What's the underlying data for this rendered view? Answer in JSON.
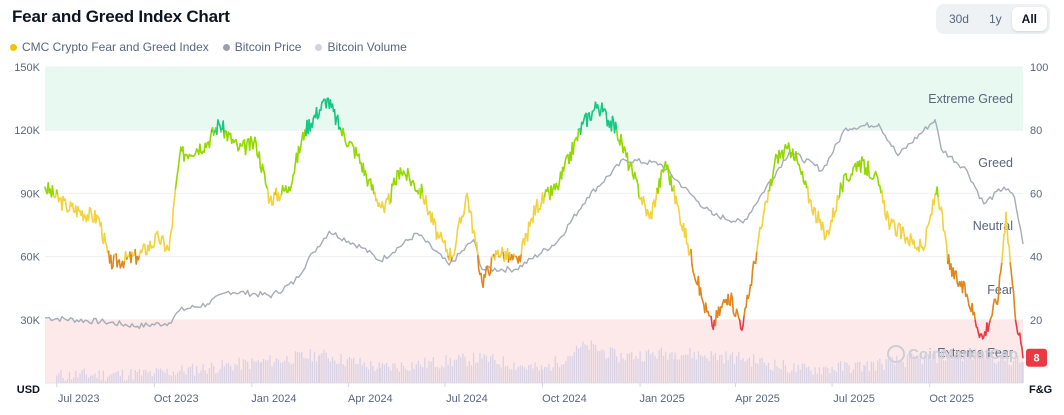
{
  "header": {
    "title": "Fear and Greed Index Chart"
  },
  "ranges": [
    {
      "label": "30d"
    },
    {
      "label": "1y"
    },
    {
      "label": "All"
    }
  ],
  "active_range": "All",
  "legend": [
    {
      "label": "CMC Crypto Fear and Greed Index",
      "color": "#f0c400"
    },
    {
      "label": "Bitcoin Price",
      "color": "#9aa1ad"
    },
    {
      "label": "Bitcoin Volume",
      "color": "#d6d0e2"
    }
  ],
  "badge": {
    "value": "8",
    "color": "#ea3943"
  },
  "watermark": "CoinMarketCap",
  "colors": {
    "extreme_fear": "#ea3943",
    "fear": "#e0861b",
    "neutral": "#f3d23c",
    "greed": "#93d900",
    "extreme_greed": "#16c784",
    "greed_zone_fill": "#e7f9f0",
    "fear_zone_fill": "#fde9ea",
    "price_line": "#a6acb6",
    "volume_bars": "#d9d2e4"
  },
  "chart_data": {
    "type": "line",
    "title": "Fear and Greed Index Chart",
    "x_tick_labels": [
      "Jul 2023",
      "Oct 2023",
      "Jan 2024",
      "Apr 2024",
      "Jul 2024",
      "Oct 2024",
      "Jan 2025",
      "Apr 2025",
      "Jul 2025",
      "Oct 2025"
    ],
    "x_tick_dates": [
      "2023-07-01",
      "2023-10-01",
      "2024-01-01",
      "2024-04-01",
      "2024-07-01",
      "2024-10-01",
      "2025-01-01",
      "2025-04-01",
      "2025-07-01",
      "2025-10-01"
    ],
    "x_range": [
      "2023-06-20",
      "2025-12-28"
    ],
    "left_axis": {
      "unit": "USD",
      "ticks": [
        "30K",
        "60K",
        "90K",
        "120K",
        "150K"
      ],
      "tick_values": [
        30000,
        60000,
        90000,
        120000,
        150000
      ],
      "range": [
        0,
        150000
      ]
    },
    "right_axis": {
      "unit": "F&G",
      "ticks": [
        "20",
        "40",
        "60",
        "80",
        "100"
      ],
      "tick_values": [
        20,
        40,
        60,
        80,
        100
      ],
      "range": [
        0,
        100
      ]
    },
    "zones": [
      {
        "label": "Extreme Greed",
        "from": 80,
        "to": 100
      },
      {
        "label": "Greed",
        "from": 60,
        "to": 80
      },
      {
        "label": "Neutral",
        "from": 40,
        "to": 60
      },
      {
        "label": "Fear",
        "from": 20,
        "to": 40
      },
      {
        "label": "Extreme Fear",
        "from": 0,
        "to": 20
      }
    ],
    "series": [
      {
        "name": "CMC Crypto Fear and Greed Index",
        "axis": "right",
        "points": [
          [
            "2023-06-20",
            62
          ],
          [
            "2023-07-10",
            56
          ],
          [
            "2023-08-10",
            52
          ],
          [
            "2023-08-20",
            38
          ],
          [
            "2023-09-15",
            40
          ],
          [
            "2023-10-05",
            46
          ],
          [
            "2023-10-15",
            42
          ],
          [
            "2023-10-25",
            72
          ],
          [
            "2023-11-20",
            76
          ],
          [
            "2023-12-01",
            82
          ],
          [
            "2023-12-20",
            74
          ],
          [
            "2024-01-05",
            76
          ],
          [
            "2024-01-18",
            58
          ],
          [
            "2024-02-05",
            62
          ],
          [
            "2024-02-20",
            80
          ],
          [
            "2024-03-12",
            90
          ],
          [
            "2024-03-25",
            80
          ],
          [
            "2024-04-10",
            72
          ],
          [
            "2024-04-20",
            64
          ],
          [
            "2024-05-05",
            54
          ],
          [
            "2024-05-20",
            68
          ],
          [
            "2024-06-10",
            60
          ],
          [
            "2024-06-25",
            46
          ],
          [
            "2024-07-08",
            40
          ],
          [
            "2024-07-22",
            60
          ],
          [
            "2024-08-05",
            32
          ],
          [
            "2024-08-20",
            42
          ],
          [
            "2024-09-08",
            38
          ],
          [
            "2024-09-25",
            56
          ],
          [
            "2024-10-15",
            62
          ],
          [
            "2024-11-08",
            82
          ],
          [
            "2024-11-22",
            88
          ],
          [
            "2024-12-10",
            80
          ],
          [
            "2024-12-25",
            66
          ],
          [
            "2025-01-10",
            52
          ],
          [
            "2025-01-25",
            70
          ],
          [
            "2025-02-15",
            44
          ],
          [
            "2025-03-01",
            26
          ],
          [
            "2025-03-10",
            18
          ],
          [
            "2025-03-25",
            28
          ],
          [
            "2025-04-08",
            18
          ],
          [
            "2025-04-22",
            44
          ],
          [
            "2025-05-10",
            72
          ],
          [
            "2025-05-25",
            74
          ],
          [
            "2025-06-10",
            58
          ],
          [
            "2025-06-25",
            46
          ],
          [
            "2025-07-10",
            62
          ],
          [
            "2025-07-25",
            70
          ],
          [
            "2025-08-10",
            66
          ],
          [
            "2025-08-25",
            50
          ],
          [
            "2025-09-10",
            46
          ],
          [
            "2025-09-25",
            42
          ],
          [
            "2025-10-08",
            62
          ],
          [
            "2025-10-20",
            36
          ],
          [
            "2025-11-05",
            28
          ],
          [
            "2025-11-20",
            14
          ],
          [
            "2025-12-05",
            28
          ],
          [
            "2025-12-12",
            54
          ],
          [
            "2025-12-20",
            24
          ],
          [
            "2025-12-28",
            8
          ]
        ]
      },
      {
        "name": "Bitcoin Price",
        "axis": "left",
        "points": [
          [
            "2023-06-20",
            31000
          ],
          [
            "2023-08-15",
            29000
          ],
          [
            "2023-09-15",
            27000
          ],
          [
            "2023-10-15",
            28500
          ],
          [
            "2023-10-25",
            34500
          ],
          [
            "2023-11-20",
            37500
          ],
          [
            "2023-12-10",
            43500
          ],
          [
            "2024-01-20",
            41500
          ],
          [
            "2024-02-10",
            48000
          ],
          [
            "2024-02-28",
            62000
          ],
          [
            "2024-03-14",
            72000
          ],
          [
            "2024-04-15",
            64000
          ],
          [
            "2024-05-01",
            58000
          ],
          [
            "2024-06-05",
            71000
          ],
          [
            "2024-07-05",
            56000
          ],
          [
            "2024-07-28",
            68000
          ],
          [
            "2024-08-05",
            54000
          ],
          [
            "2024-09-06",
            54000
          ],
          [
            "2024-10-15",
            67000
          ],
          [
            "2024-11-12",
            88000
          ],
          [
            "2024-12-17",
            106000
          ],
          [
            "2025-01-20",
            104000
          ],
          [
            "2025-02-25",
            86000
          ],
          [
            "2025-03-10",
            80000
          ],
          [
            "2025-04-08",
            76000
          ],
          [
            "2025-05-22",
            110000
          ],
          [
            "2025-06-22",
            101000
          ],
          [
            "2025-07-14",
            121000
          ],
          [
            "2025-08-14",
            123000
          ],
          [
            "2025-09-01",
            108000
          ],
          [
            "2025-10-06",
            125000
          ],
          [
            "2025-10-12",
            111000
          ],
          [
            "2025-11-05",
            101000
          ],
          [
            "2025-11-21",
            85000
          ],
          [
            "2025-12-10",
            93000
          ],
          [
            "2025-12-20",
            88000
          ],
          [
            "2025-12-28",
            66000
          ]
        ]
      },
      {
        "name": "Bitcoin Volume",
        "axis": "left",
        "display": "bars",
        "note_relative": "relative daily trading volume, 0-1 scale",
        "points": [
          [
            "2023-07-01",
            0.2
          ],
          [
            "2023-10-01",
            0.25
          ],
          [
            "2024-01-10",
            0.55
          ],
          [
            "2024-03-05",
            0.75
          ],
          [
            "2024-05-01",
            0.4
          ],
          [
            "2024-08-05",
            0.65
          ],
          [
            "2024-10-01",
            0.35
          ],
          [
            "2024-11-12",
            1.0
          ],
          [
            "2024-12-10",
            0.7
          ],
          [
            "2025-02-03",
            0.8
          ],
          [
            "2025-04-08",
            0.65
          ],
          [
            "2025-06-01",
            0.35
          ],
          [
            "2025-08-01",
            0.45
          ],
          [
            "2025-10-10",
            0.7
          ],
          [
            "2025-11-21",
            0.75
          ],
          [
            "2025-12-28",
            0.55
          ]
        ]
      }
    ],
    "grid": true,
    "legend_position": "top-left"
  }
}
